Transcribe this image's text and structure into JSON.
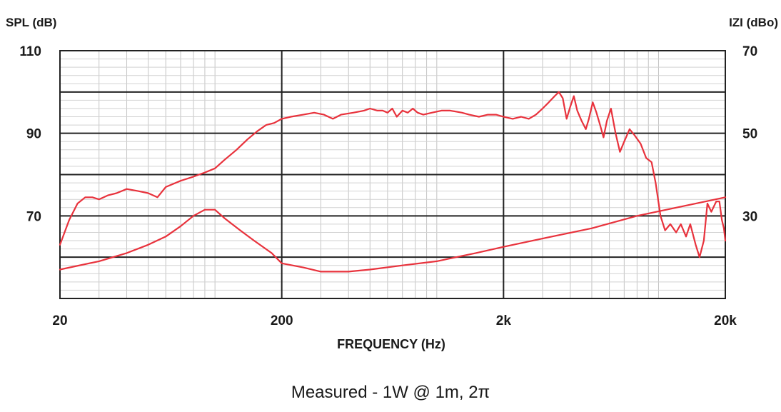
{
  "chart_data": {
    "type": "line",
    "xscale": "log",
    "xlim": [
      20,
      20000
    ],
    "ylim_left": [
      50,
      110
    ],
    "ylim_right": [
      10,
      70
    ],
    "xlabel": "FREQUENCY (Hz)",
    "ylabel_left": "SPL (dB)",
    "ylabel_right": "IZI (dBo)",
    "x_tick_labels": [
      {
        "value": 20,
        "label": "20"
      },
      {
        "value": 200,
        "label": "200"
      },
      {
        "value": 2000,
        "label": "2k"
      },
      {
        "value": 20000,
        "label": "20k"
      }
    ],
    "y_left_tick_labels": [
      {
        "value": 110,
        "label": "110"
      },
      {
        "value": 90,
        "label": "90"
      },
      {
        "value": 70,
        "label": "70"
      }
    ],
    "y_right_tick_labels": [
      {
        "value": 70,
        "label": "70"
      },
      {
        "value": 50,
        "label": "50"
      },
      {
        "value": 30,
        "label": "30"
      }
    ],
    "grid": true,
    "line_color": "#e8323c",
    "series": [
      {
        "axis": "left",
        "points": [
          [
            20,
            63
          ],
          [
            22,
            69
          ],
          [
            24,
            73
          ],
          [
            26,
            74.5
          ],
          [
            28,
            74.5
          ],
          [
            30,
            74
          ],
          [
            33,
            75
          ],
          [
            36,
            75.5
          ],
          [
            40,
            76.5
          ],
          [
            45,
            76
          ],
          [
            50,
            75.5
          ],
          [
            55,
            74.5
          ],
          [
            60,
            77
          ],
          [
            70,
            78.5
          ],
          [
            80,
            79.5
          ],
          [
            90,
            80.5
          ],
          [
            100,
            81.5
          ],
          [
            110,
            83.5
          ],
          [
            125,
            86
          ],
          [
            140,
            88.5
          ],
          [
            155,
            90.5
          ],
          [
            170,
            92
          ],
          [
            185,
            92.5
          ],
          [
            200,
            93.5
          ],
          [
            220,
            94
          ],
          [
            250,
            94.5
          ],
          [
            280,
            95
          ],
          [
            310,
            94.5
          ],
          [
            340,
            93.5
          ],
          [
            370,
            94.5
          ],
          [
            420,
            95
          ],
          [
            470,
            95.5
          ],
          [
            500,
            96
          ],
          [
            540,
            95.5
          ],
          [
            570,
            95.5
          ],
          [
            600,
            95
          ],
          [
            630,
            96
          ],
          [
            660,
            94
          ],
          [
            700,
            95.5
          ],
          [
            740,
            95
          ],
          [
            780,
            96
          ],
          [
            820,
            95
          ],
          [
            870,
            94.5
          ],
          [
            950,
            95
          ],
          [
            1050,
            95.5
          ],
          [
            1150,
            95.5
          ],
          [
            1300,
            95
          ],
          [
            1400,
            94.5
          ],
          [
            1550,
            94
          ],
          [
            1700,
            94.5
          ],
          [
            1850,
            94.5
          ],
          [
            2000,
            94
          ],
          [
            2200,
            93.5
          ],
          [
            2400,
            94
          ],
          [
            2600,
            93.5
          ],
          [
            2800,
            94.5
          ],
          [
            3000,
            96
          ],
          [
            3200,
            97.5
          ],
          [
            3400,
            99
          ],
          [
            3550,
            100
          ],
          [
            3700,
            98.5
          ],
          [
            3850,
            93.5
          ],
          [
            4000,
            96.5
          ],
          [
            4150,
            99
          ],
          [
            4300,
            95.5
          ],
          [
            4500,
            93
          ],
          [
            4700,
            91
          ],
          [
            4850,
            93.5
          ],
          [
            5050,
            97.5
          ],
          [
            5250,
            95
          ],
          [
            5450,
            92
          ],
          [
            5650,
            89
          ],
          [
            5850,
            93
          ],
          [
            6100,
            96
          ],
          [
            6400,
            90
          ],
          [
            6700,
            85.5
          ],
          [
            7000,
            88
          ],
          [
            7400,
            91
          ],
          [
            7800,
            89.5
          ],
          [
            8300,
            87.5
          ],
          [
            8800,
            84
          ],
          [
            9300,
            83
          ],
          [
            9700,
            78
          ],
          [
            10200,
            70
          ],
          [
            10700,
            66.5
          ],
          [
            11300,
            68
          ],
          [
            12000,
            66
          ],
          [
            12600,
            68
          ],
          [
            13300,
            65
          ],
          [
            13900,
            68
          ],
          [
            14700,
            63
          ],
          [
            15300,
            60
          ],
          [
            16000,
            64
          ],
          [
            16600,
            73
          ],
          [
            17300,
            71
          ],
          [
            18200,
            73.5
          ],
          [
            18800,
            73.5
          ],
          [
            19300,
            69
          ],
          [
            19700,
            67
          ],
          [
            20000,
            64
          ]
        ]
      },
      {
        "axis": "right",
        "points": [
          [
            20,
            17
          ],
          [
            30,
            19
          ],
          [
            40,
            21
          ],
          [
            50,
            23
          ],
          [
            60,
            25
          ],
          [
            70,
            27.5
          ],
          [
            80,
            30
          ],
          [
            90,
            31.5
          ],
          [
            100,
            31.5
          ],
          [
            110,
            29.5
          ],
          [
            130,
            26.5
          ],
          [
            150,
            24
          ],
          [
            180,
            21
          ],
          [
            200,
            18.5
          ],
          [
            250,
            17.5
          ],
          [
            300,
            16.5
          ],
          [
            400,
            16.5
          ],
          [
            500,
            17
          ],
          [
            700,
            18
          ],
          [
            1000,
            19
          ],
          [
            1500,
            21
          ],
          [
            2000,
            22.5
          ],
          [
            3000,
            24.5
          ],
          [
            5000,
            27
          ],
          [
            8000,
            30
          ],
          [
            12000,
            32
          ],
          [
            20000,
            34.5
          ]
        ]
      }
    ]
  },
  "caption": "Measured - 1W @ 1m, 2π"
}
